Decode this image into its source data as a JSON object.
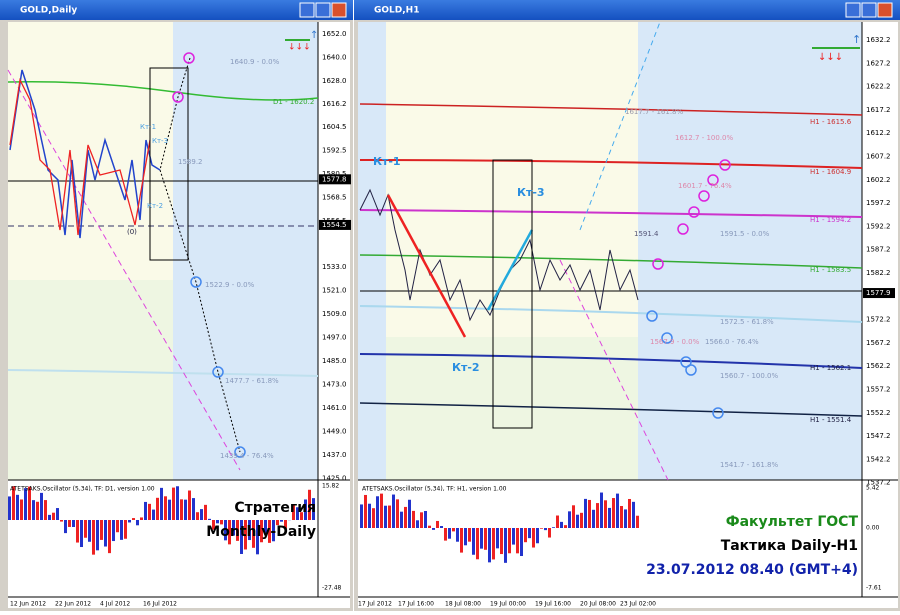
{
  "windows": [
    {
      "title": "GOLD,Daily",
      "price_axis": [
        "1652.0",
        "1640.0",
        "1628.0",
        "1616.2",
        "1604.5",
        "1592.5",
        "1580.5",
        "1577.8",
        "1568.5",
        "1556.5",
        "1554.5",
        "1533.0",
        "1521.0",
        "1509.0",
        "1497.0",
        "1485.0",
        "1473.0",
        "1461.0",
        "1449.0",
        "1437.0",
        "1425.0"
      ],
      "annotations": [
        "1640.9 - 0.0%",
        "D1 - 1620.2",
        "Кт-1",
        "Кт-3",
        "1589.2",
        "Кт-2",
        "(0)",
        "1522.9 - 0.0%",
        "1477.7 - 61.8%",
        "1439.4 - 76.4%"
      ],
      "oscillator": {
        "label": "ATETSAKS.Oscillator (5,34), TF: D1, version 1.00",
        "axis": [
          "15.82",
          "-27.48"
        ],
        "texts": [
          "Стратегия",
          "Monthly-Daily"
        ]
      },
      "dates": [
        "12 Jun 2012",
        "22 Jun 2012",
        "4 Jul 2012",
        "16 Jul 2012"
      ]
    },
    {
      "title": "GOLD,H1",
      "price_axis": [
        "1632.2",
        "1627.2",
        "1622.2",
        "1617.2",
        "1612.2",
        "1607.2",
        "1602.2",
        "1597.2",
        "1592.2",
        "1587.2",
        "1582.2",
        "1577.9",
        "1572.2",
        "1567.2",
        "1562.2",
        "1557.2",
        "1552.2",
        "1547.2",
        "1542.2",
        "1537.2"
      ],
      "annotations": [
        "Кт-1",
        "Кт-3",
        "Кт-2",
        "1617.7 - 161.8%",
        "H1 - 1615.6",
        "1612.7 - 100.0%",
        "H1 - 1604.9",
        "1601.7 - 76.4%",
        "H1 - 1594.2",
        "1591.4",
        "1591.5 - 0.0%",
        "H1 - 1583.5",
        "1572.5 - 61.8%",
        "1567.9 - 0.0%",
        "1566.0 - 76.4%",
        "H1 - 1562.1",
        "1560.7 - 100.0%",
        "H1 - 1551.4",
        "1541.7 - 161.8%"
      ],
      "oscillator": {
        "label": "ATETSAKS.Oscillator (5,34), TF: H1, version 1.00",
        "axis": [
          "5.42",
          "0.00",
          "-7.61"
        ],
        "texts": [
          "Факультет ГОСТ",
          "Тактика Daily-H1",
          "23.07.2012  08.40 (GMT+4)"
        ]
      },
      "dates": [
        "17 Jul 2012",
        "17 Jul 16:00",
        "18 Jul 08:00",
        "19 Jul 00:00",
        "19 Jul 16:00",
        "20 Jul 08:00",
        "23 Jul 02:00"
      ]
    }
  ]
}
